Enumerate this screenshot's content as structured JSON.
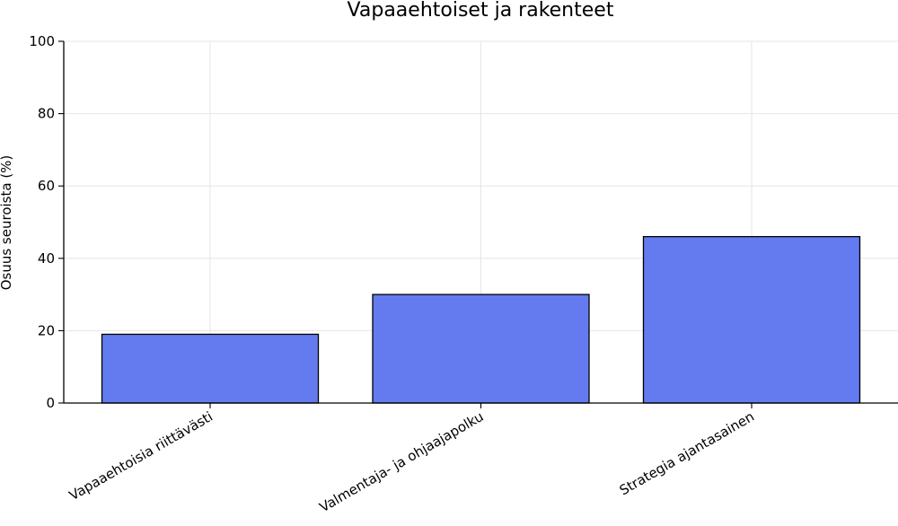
{
  "chart_data": {
    "type": "bar",
    "title": "Vapaaehtoiset ja rakenteet",
    "ylabel": "Osuus seuroista (%)",
    "xlabel": "",
    "categories": [
      "Vapaaehtoisia riittävästi",
      "Valmentaja- ja ohjaajapolku",
      "Strategia ajantasainen"
    ],
    "values": [
      19,
      30,
      46
    ],
    "ylim": [
      0,
      100
    ],
    "yticks": [
      0,
      20,
      40,
      60,
      80,
      100
    ],
    "grid": true,
    "bar_color": "#637bef"
  }
}
